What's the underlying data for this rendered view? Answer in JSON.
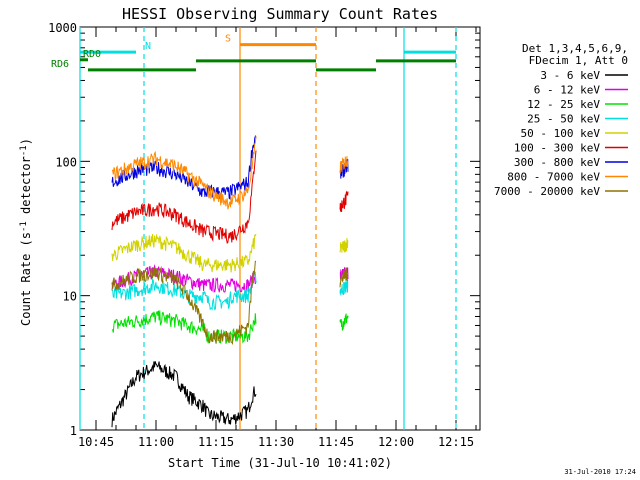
{
  "chart_data": {
    "type": "line",
    "title": "HESSI Observing Summary Count Rates",
    "xlabel": "Start Time (31-Jul-10 10:41:02)",
    "ylabel_main": "Count Rate (s",
    "ylabel_sup1": "-1",
    "ylabel_mid": " detector",
    "ylabel_sup2": "-1",
    "ylabel_end": ")",
    "yscale": "log",
    "ylim": [
      1,
      1000
    ],
    "xlim_minutes": [
      "10:41",
      "12:21"
    ],
    "x_ticks": [
      "10:45",
      "11:00",
      "11:15",
      "11:30",
      "11:45",
      "12:00",
      "12:15"
    ],
    "y_ticks": [
      "1",
      "10",
      "100",
      "1000"
    ],
    "legend_header": [
      "Det 1,3,4,5,6,9,",
      "FDecim 1, Att 0"
    ],
    "legend_position": "right",
    "series": [
      {
        "name": "3 - 6 keV",
        "color": "#000000"
      },
      {
        "name": "6 - 12 keV",
        "color": "#e000e0"
      },
      {
        "name": "12 - 25 keV",
        "color": "#00e000"
      },
      {
        "name": "25 - 50 keV",
        "color": "#00e0e0"
      },
      {
        "name": "50 - 100 keV",
        "color": "#d2d200"
      },
      {
        "name": "100 - 300 keV",
        "color": "#e00000"
      },
      {
        "name": "300 - 800 keV",
        "color": "#0000e0"
      },
      {
        "name": "800 - 7000 keV",
        "color": "#ff8800"
      },
      {
        "name": "7000 - 20000 keV",
        "color": "#8b7500"
      }
    ],
    "profile_times": [
      "10:49",
      "10:55",
      "11:00",
      "11:05",
      "11:08",
      "11:12",
      "11:13",
      "11:18",
      "11:19",
      "11:23",
      "11:24",
      "11:25"
    ],
    "profile_levels": {
      "3 - 6 keV": [
        1.2,
        2.5,
        3.0,
        2.5,
        1.8,
        1.5,
        1.3,
        1.2,
        1.2,
        1.4,
        1.8,
        2.0
      ],
      "6 - 12 keV": [
        12,
        14,
        15,
        14,
        13,
        12,
        12,
        12,
        12,
        12,
        13,
        14
      ],
      "12 - 25 keV": [
        6,
        6.5,
        7,
        6.5,
        6,
        5.5,
        5,
        5,
        5,
        5,
        6,
        7
      ],
      "25 - 50 keV": [
        10,
        11,
        12,
        11,
        10,
        10,
        9,
        9,
        10,
        10,
        12,
        14
      ],
      "50 - 100 keV": [
        20,
        24,
        26,
        23,
        20,
        17,
        17,
        17,
        17,
        18,
        22,
        28
      ],
      "100 - 300 keV": [
        35,
        42,
        45,
        40,
        35,
        30,
        30,
        28,
        28,
        35,
        60,
        130
      ],
      "300 - 800 keV": [
        70,
        85,
        90,
        80,
        70,
        58,
        60,
        58,
        60,
        70,
        120,
        160
      ],
      "800 - 7000 keV": [
        80,
        95,
        105,
        92,
        80,
        65,
        60,
        50,
        50,
        60,
        90,
        140
      ],
      "7000 - 20000 keV": [
        12,
        14,
        15,
        13,
        10,
        6,
        5,
        5,
        5,
        6,
        12,
        20
      ]
    },
    "late_segment_times": [
      "11:46",
      "11:48"
    ],
    "late_segment_levels": {
      "6 - 12 keV": [
        14,
        15
      ],
      "12 - 25 keV": [
        6,
        7
      ],
      "25 - 50 keV": [
        11,
        12
      ],
      "50 - 100 keV": [
        22,
        25
      ],
      "100 - 300 keV": [
        45,
        55
      ],
      "300 - 800 keV": [
        80,
        95
      ],
      "800 - 7000 keV": [
        90,
        105
      ],
      "7000 - 20000 keV": [
        13,
        15
      ]
    },
    "vertical_markers": [
      {
        "time": "10:41",
        "color": "#00e0e0",
        "style": "solid"
      },
      {
        "time": "10:57",
        "color": "#00e0e0",
        "style": "dashed"
      },
      {
        "time": "11:21",
        "color": "#ff8800",
        "style": "solid"
      },
      {
        "time": "11:40",
        "color": "#ff8800",
        "style": "dashed"
      },
      {
        "time": "12:02",
        "color": "#00e0e0",
        "style": "solid"
      },
      {
        "time": "12:15",
        "color": "#00e0e0",
        "style": "dashed"
      }
    ],
    "flag_bars": [
      {
        "label": "",
        "color": "#00e0e0",
        "y": 650,
        "start": "10:41",
        "end": "10:55"
      },
      {
        "label": "N",
        "color": "#00e0e0",
        "y": 650,
        "label_time": "10:58"
      },
      {
        "label": "",
        "color": "#00e0e0",
        "y": 650,
        "start": "12:02",
        "end": "12:15"
      },
      {
        "label": "S",
        "color": "#ff8800",
        "y": 740,
        "label_time": "11:18"
      },
      {
        "label": "",
        "color": "#ff8800",
        "y": 740,
        "start": "11:21",
        "end": "11:40"
      },
      {
        "label": "RD0",
        "color": "#008000",
        "y": 570,
        "label_time": "10:44"
      },
      {
        "label": "",
        "color": "#008000",
        "y": 570,
        "start": "10:41",
        "end": "10:43"
      },
      {
        "label": "RD6",
        "color": "#008000",
        "y": 480,
        "label_time": "10:36"
      },
      {
        "label": "",
        "color": "#008000",
        "y": 480,
        "start": "10:43",
        "end": "11:10"
      },
      {
        "label": "",
        "color": "#008000",
        "y": 560,
        "start": "11:10",
        "end": "11:40"
      },
      {
        "label": "",
        "color": "#008000",
        "y": 480,
        "start": "11:40",
        "end": "11:55"
      },
      {
        "label": "",
        "color": "#008000",
        "y": 560,
        "start": "11:55",
        "end": "12:15"
      }
    ],
    "footer_date": "31-Jul-2010 17:24"
  }
}
